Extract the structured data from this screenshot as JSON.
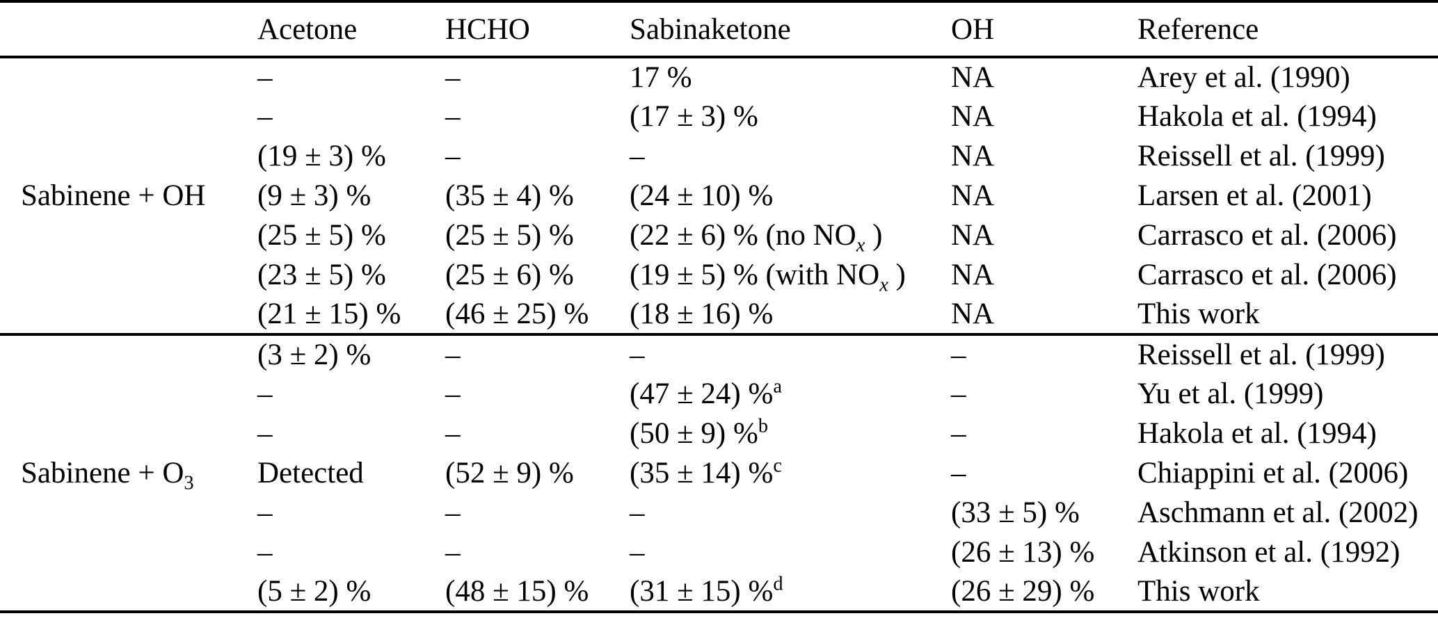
{
  "meta": {
    "kind": "paper-table",
    "text_color": "#000000",
    "background_color": "#ffffff",
    "rule_color": "#000000"
  },
  "table": {
    "columns": [
      "",
      "Acetone",
      "HCHO",
      "Sabinaketone",
      "OH",
      "Reference"
    ],
    "groups": [
      {
        "label": "Sabinene + OH",
        "rows": [
          [
            "–",
            "–",
            "17 %",
            "NA",
            "Arey et al. (1990)"
          ],
          [
            "–",
            "–",
            "(17 ± 3) %",
            "NA",
            "Hakola et al. (1994)"
          ],
          [
            "(19 ± 3) %",
            "–",
            "–",
            "NA",
            "Reissell et al. (1999)"
          ],
          [
            "(9 ± 3) %",
            "(35 ± 4) %",
            "(24 ± 10) %",
            "NA",
            "Larsen et al. (2001)"
          ],
          [
            "(25 ± 5) %",
            "(25 ± 5) %",
            "(22 ± 6) % (no NO_{*x*} )",
            "NA",
            "Carrasco et al. (2006)"
          ],
          [
            "(23 ± 5) %",
            "(25 ± 6) %",
            "(19 ± 5) % (with NO_{*x*} )",
            "NA",
            "Carrasco et al. (2006)"
          ],
          [
            "(21 ± 15) %",
            "(46 ± 25) %",
            "(18 ± 16) %",
            "NA",
            "This work"
          ]
        ]
      },
      {
        "label": "Sabinene + O_{3}",
        "rows": [
          [
            "(3 ± 2) %",
            "–",
            "–",
            "–",
            "Reissell et al. (1999)"
          ],
          [
            "–",
            "–",
            "(47 ± 24) %^{a}",
            "–",
            "Yu et al. (1999)"
          ],
          [
            "–",
            "–",
            "(50 ± 9) %^{b}",
            "–",
            "Hakola et al. (1994)"
          ],
          [
            "Detected",
            "(52 ± 9) %",
            "(35 ± 14) %^{c}",
            "–",
            "Chiappini et al. (2006)"
          ],
          [
            "–",
            "–",
            "–",
            "(33 ± 5) %",
            "Aschmann et al. (2002)"
          ],
          [
            "–",
            "–",
            "–",
            "(26 ± 13) %",
            "Atkinson et al. (1992)"
          ],
          [
            "(5 ± 2) %",
            "(48 ± 15) %",
            "(31 ± 15) %^{d}",
            "(26 ± 29) %",
            "This work"
          ]
        ]
      }
    ]
  }
}
